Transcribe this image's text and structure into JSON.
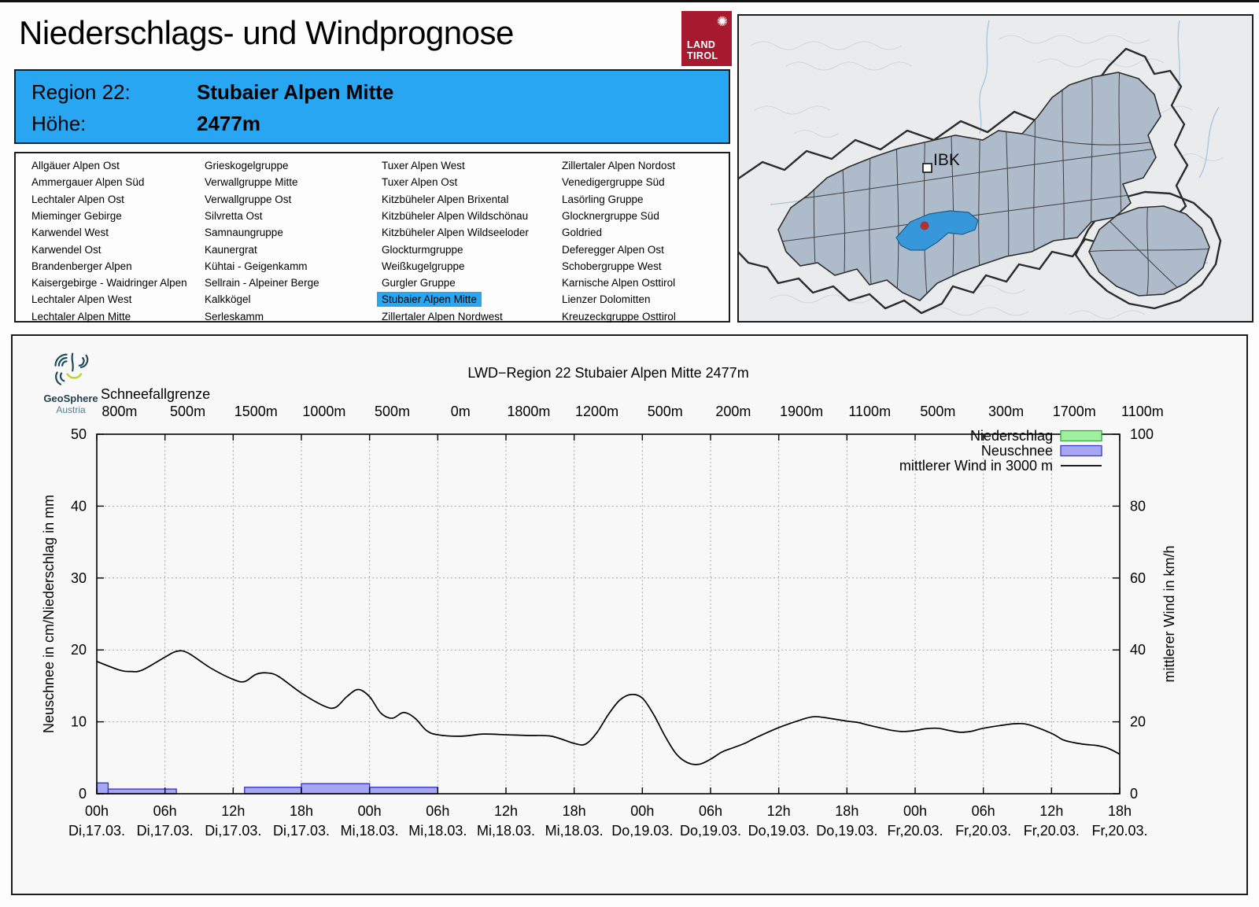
{
  "header": {
    "title": "Niederschlags- und Windprognose",
    "logo": {
      "line1": "LAND",
      "line2": "TIROL",
      "emblem": "snowflake-icon",
      "color": "#a6192e"
    }
  },
  "region_info": {
    "region_label": "Region 22:",
    "region_name": "Stubaier Alpen Mitte",
    "altitude_label": "Höhe:",
    "altitude_value": "2477m",
    "accent_color": "#29a6f2"
  },
  "region_list": {
    "selected": "Stubaier Alpen Mitte",
    "columns": [
      [
        "Allgäuer Alpen Ost",
        "Ammergauer Alpen Süd",
        "Lechtaler Alpen Ost",
        "Mieminger Gebirge",
        "Karwendel West",
        "Karwendel Ost",
        "Brandenberger Alpen",
        "Kaisergebirge - Waidringer Alpen",
        "Lechtaler Alpen West",
        "Lechtaler Alpen Mitte"
      ],
      [
        "Grieskogelgruppe",
        "Verwallgruppe Mitte",
        "Verwallgruppe Ost",
        "Silvretta Ost",
        "Samnaungruppe",
        "Kaunergrat",
        "Kühtai - Geigenkamm",
        "Sellrain - Alpeiner Berge",
        "Kalkkögel",
        "Serleskamm"
      ],
      [
        "Tuxer Alpen West",
        "Tuxer Alpen Ost",
        "Kitzbüheler Alpen Brixental",
        "Kitzbüheler Alpen Wildschönau",
        "Kitzbüheler Alpen Wildseeloder",
        "Glockturmgruppe",
        "Weißkugelgruppe",
        "Gurgler Gruppe",
        "Stubaier Alpen Mitte",
        "Zillertaler Alpen Nordwest"
      ],
      [
        "Zillertaler Alpen Nordost",
        "Venedigergruppe Süd",
        "Lasörling Gruppe",
        "Glocknergruppe Süd",
        "Goldried",
        "Deferegger Alpen Ost",
        "Schobergruppe West",
        "Karnische Alpen Osttirol",
        "Lienzer Dolomitten",
        "Kreuzeckgruppe Osttirol"
      ]
    ]
  },
  "map": {
    "city_label": "IBK",
    "region_fill": "#aebbcb",
    "highlight_fill": "#3697db",
    "marker_color": "#b03232"
  },
  "brand": {
    "name": "GeoSphere",
    "country": "Austria"
  },
  "chart_data": {
    "type": "line+bar",
    "title": "LWD−Region 22 Stubaier Alpen Mitte 2477m",
    "snowline": {
      "label": "Schneefallgrenze",
      "hours": [
        2,
        8,
        14,
        20,
        26,
        32,
        38,
        44,
        50,
        56,
        62,
        68,
        74,
        80,
        86,
        92
      ],
      "values": [
        "800m",
        "500m",
        "1500m",
        "1000m",
        "500m",
        "0m",
        "1800m",
        "1200m",
        "500m",
        "200m",
        "1900m",
        "1100m",
        "500m",
        "300m",
        "1700m",
        "1100m"
      ]
    },
    "x_range_hours": [
      0,
      90
    ],
    "x_ticks": {
      "hours": [
        0,
        6,
        12,
        18,
        24,
        30,
        36,
        42,
        48,
        54,
        60,
        66,
        72,
        78,
        84,
        90
      ],
      "time_labels": [
        "00h",
        "06h",
        "12h",
        "18h",
        "00h",
        "06h",
        "12h",
        "18h",
        "00h",
        "06h",
        "12h",
        "18h",
        "00h",
        "06h",
        "12h",
        "18h"
      ],
      "date_labels": [
        "Di,17.03.",
        "Di,17.03.",
        "Di,17.03.",
        "Di,17.03.",
        "Mi,18.03.",
        "Mi,18.03.",
        "Mi,18.03.",
        "Mi,18.03.",
        "Do,19.03.",
        "Do,19.03.",
        "Do,19.03.",
        "Do,19.03.",
        "Fr,20.03.",
        "Fr,20.03.",
        "Fr,20.03.",
        "Fr,20.03."
      ]
    },
    "y_left": {
      "label": "Neuschnee in cm/Niederschlag in mm",
      "min": 0,
      "max": 50,
      "ticks": [
        0,
        10,
        20,
        30,
        40,
        50
      ]
    },
    "y_right": {
      "label": "mittlerer Wind in km/h",
      "min": 0,
      "max": 100,
      "ticks": [
        0,
        20,
        40,
        60,
        80,
        100
      ]
    },
    "grid": {
      "on": true,
      "color": "#a8a8a8"
    },
    "legend": {
      "position": "top-right",
      "items": [
        {
          "label": "Niederschlag",
          "type": "box",
          "fill": "#9df09d",
          "stroke": "#3fa33f"
        },
        {
          "label": "Neuschnee",
          "type": "box",
          "fill": "#a6a6f2",
          "stroke": "#3a3ac8"
        },
        {
          "label": "mittlerer Wind in 3000 m",
          "type": "line",
          "stroke": "#000000"
        }
      ]
    },
    "niederschlag_mm_segments": [],
    "neuschnee_cm_segments": [
      [
        0,
        1,
        1.5
      ],
      [
        1,
        7,
        0.65
      ],
      [
        13,
        18,
        0.9
      ],
      [
        18,
        24,
        1.4
      ],
      [
        24,
        30,
        0.9
      ]
    ],
    "wind_kmh": {
      "hours": [
        0,
        2,
        3,
        4,
        6,
        7,
        8,
        10,
        12,
        13,
        14,
        15,
        16,
        18,
        20,
        21,
        22,
        23,
        24,
        25,
        26,
        27,
        28,
        29,
        30,
        32,
        34,
        36,
        38,
        40,
        42,
        43,
        44,
        45,
        46,
        47,
        48,
        49,
        50,
        51,
        52,
        53,
        54,
        55,
        56,
        57,
        58,
        60,
        62,
        63,
        64,
        66,
        67,
        68,
        70,
        71,
        72,
        73,
        74,
        75,
        76,
        77,
        78,
        80,
        81,
        82,
        84,
        85,
        86,
        87,
        88,
        89,
        90
      ],
      "values": [
        36.8,
        34.4,
        34,
        34.4,
        38,
        39.6,
        39.2,
        35,
        31.8,
        31.2,
        33.2,
        33.6,
        32.6,
        28,
        24.4,
        24,
        27,
        29,
        27,
        22.4,
        21,
        22.6,
        21,
        17.6,
        16.4,
        16,
        16.6,
        16.4,
        16.2,
        16,
        14,
        13.8,
        17,
        22,
        26,
        27.6,
        26.6,
        22,
        16,
        11,
        8.6,
        8.2,
        9.6,
        11.6,
        12.8,
        14,
        15.6,
        18.4,
        20.6,
        21.4,
        21.2,
        20.2,
        19.8,
        19,
        17.6,
        17.3,
        17.6,
        18.1,
        18.2,
        17.6,
        17.1,
        17.4,
        18.2,
        19.2,
        19.5,
        19.2,
        16.8,
        15,
        14.2,
        13.7,
        13.4,
        12.6,
        11
      ]
    }
  }
}
